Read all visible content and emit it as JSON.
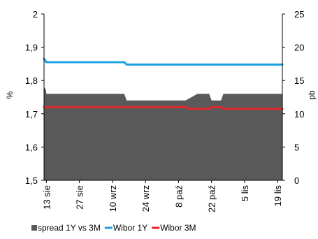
{
  "chart_data": {
    "type": "line",
    "title": "",
    "y_left": {
      "label": "%",
      "range": [
        1.5,
        2.0
      ],
      "ticks": [
        "1,5",
        "1,6",
        "1,7",
        "1,8",
        "1,9",
        "2"
      ],
      "tick_values": [
        1.5,
        1.6,
        1.7,
        1.8,
        1.9,
        2.0
      ]
    },
    "y_right": {
      "label": "pb",
      "range": [
        0,
        25
      ],
      "ticks": [
        "0",
        "5",
        "10",
        "15",
        "20",
        "25"
      ],
      "tick_values": [
        0,
        5,
        10,
        15,
        20,
        25
      ]
    },
    "x_ticks": [
      "13 sie",
      "27 sie",
      "10 wrz",
      "24 wrz",
      "8 paź",
      "22 paź",
      "5 lis",
      "19 lis"
    ],
    "x_tick_days": [
      0,
      14,
      28,
      42,
      56,
      70,
      84,
      98
    ],
    "x_range_days": [
      -1,
      100
    ],
    "series": [
      {
        "name": "spread 1Y vs 3M",
        "type": "area",
        "axis": "right",
        "color": "#595959",
        "x": [
          -1,
          -0.2,
          0,
          33,
          34,
          59,
          61,
          64,
          69,
          70,
          72,
          74,
          75,
          100
        ],
        "y": [
          14,
          13.6,
          13,
          13,
          12,
          12,
          12.4,
          13,
          13,
          12,
          12,
          12,
          13,
          13
        ]
      },
      {
        "name": "Wibor 1Y",
        "type": "line",
        "axis": "left",
        "color": "#1ba1e2",
        "x": [
          -1,
          0,
          33,
          34,
          100
        ],
        "y": [
          1.865,
          1.855,
          1.855,
          1.848,
          1.848
        ]
      },
      {
        "name": "Wibor 3M",
        "type": "line",
        "axis": "left",
        "color": "#e3262b",
        "x": [
          -1,
          59,
          61,
          69,
          70,
          74,
          75,
          100
        ],
        "y": [
          1.72,
          1.72,
          1.715,
          1.715,
          1.72,
          1.72,
          1.715,
          1.715
        ]
      }
    ],
    "legend": {
      "position": "bottom",
      "items": [
        {
          "label": "spread 1Y vs 3M",
          "color": "#595959",
          "marker": "square"
        },
        {
          "label": "Wibor 1Y",
          "color": "#1ba1e2",
          "marker": "line"
        },
        {
          "label": "Wibor 3M",
          "color": "#e3262b",
          "marker": "line"
        }
      ]
    }
  }
}
